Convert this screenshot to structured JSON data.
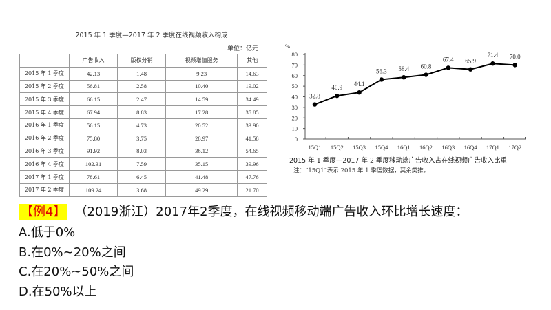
{
  "table": {
    "title": "2015 年 1 季度—2017 年 2 季度在线视频收入构成",
    "unit": "单位：亿元",
    "headers": [
      "",
      "广告收入",
      "版权分销",
      "视频增值服务",
      "其他"
    ],
    "rows": [
      [
        "2015 年 1 季度",
        "42.13",
        "1.48",
        "9.23",
        "14.63"
      ],
      [
        "2015 年 2 季度",
        "56.81",
        "2.58",
        "10.40",
        "19.02"
      ],
      [
        "2015 年 3 季度",
        "66.15",
        "2.47",
        "14.59",
        "34.49"
      ],
      [
        "2015 年 4 季度",
        "67.94",
        "8.83",
        "17.28",
        "35.85"
      ],
      [
        "2016 年 1 季度",
        "56.15",
        "4.73",
        "20.52",
        "33.90"
      ],
      [
        "2016 年 2 季度",
        "75.80",
        "3.75",
        "28.97",
        "41.58"
      ],
      [
        "2016 年 3 季度",
        "91.92",
        "8.03",
        "36.12",
        "54.65"
      ],
      [
        "2016 年 4 季度",
        "102.31",
        "7.59",
        "35.15",
        "39.96"
      ],
      [
        "2017 年 1 季度",
        "78.61",
        "6.45",
        "41.48",
        "47.76"
      ],
      [
        "2017 年 2 季度",
        "109.24",
        "3.68",
        "49.29",
        "21.70"
      ]
    ]
  },
  "chart_data": {
    "type": "line",
    "title": "2015 年 1 季度—2017 年 2 季度移动端广告收入占在线视频广告收入比重",
    "note": "注：“15Q1”表示 2015 年 1 季度数据，其余类推。",
    "ylabel": "%",
    "xlabel": "",
    "ylim": [
      0,
      80
    ],
    "yticks": [
      0,
      10,
      20,
      30,
      40,
      50,
      60,
      70,
      80
    ],
    "grid": false,
    "categories": [
      "15Q1",
      "15Q2",
      "15Q3",
      "15Q4",
      "16Q1",
      "16Q2",
      "16Q3",
      "16Q4",
      "17Q1",
      "17Q2"
    ],
    "values": [
      32.8,
      40.9,
      44.1,
      56.3,
      58.4,
      60.8,
      67.4,
      65.9,
      71.4,
      70.0
    ],
    "data_labels": [
      "32.8",
      "40.9",
      "44.1",
      "56.3",
      "58.4",
      "60.8",
      "67.4",
      "65.9",
      "71.4",
      "70.0"
    ]
  },
  "question": {
    "tag": "【例4】",
    "text": "（2019浙江）2017年2季度，在线视频移动端广告收入环比增长速度：",
    "options": [
      "A.低于0%",
      "B.在0%~20%之间",
      "C.在20%~50%之间",
      "D.在50%以上"
    ]
  },
  "colors": {
    "tag_bg": "#ffff00",
    "tag_text": "#e00000"
  }
}
